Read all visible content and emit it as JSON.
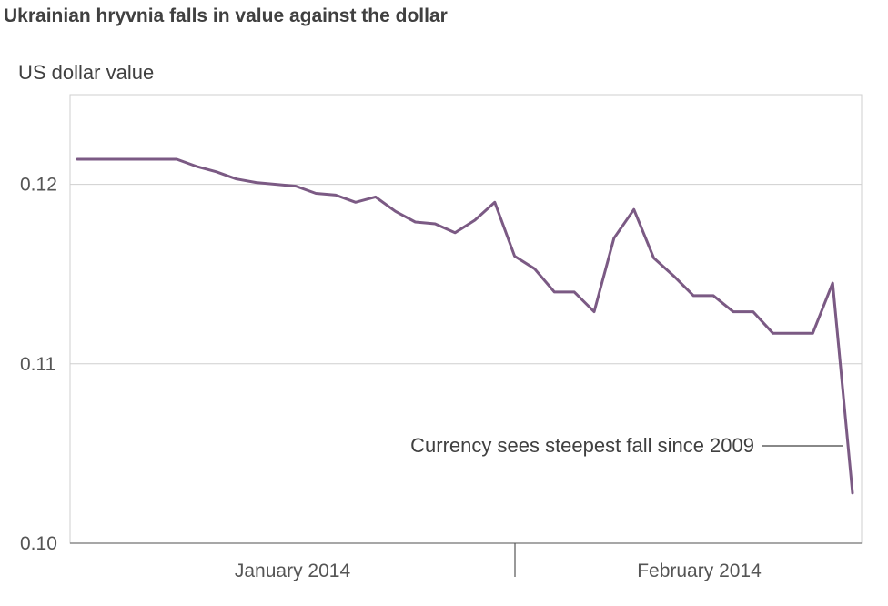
{
  "chart_data": {
    "type": "line",
    "title": "Ukrainian hryvnia falls in value against the dollar",
    "ylabel": "US dollar value",
    "xlabel": "",
    "ylim": [
      0.1,
      0.125
    ],
    "y_ticks": [
      {
        "value": 0.1,
        "label": "0.10"
      },
      {
        "value": 0.11,
        "label": "0.11"
      },
      {
        "value": 0.12,
        "label": "0.12"
      }
    ],
    "x_ticks": [
      {
        "label": "January 2014"
      },
      {
        "label": "February 2014"
      }
    ],
    "grid": true,
    "series": [
      {
        "color": "#7b5a84",
        "values": [
          0.1214,
          0.1214,
          0.1214,
          0.1214,
          0.1214,
          0.1214,
          0.121,
          0.1207,
          0.1203,
          0.1201,
          0.12,
          0.1199,
          0.1195,
          0.1194,
          0.119,
          0.1193,
          0.1185,
          0.1179,
          0.1178,
          0.1173,
          0.118,
          0.119,
          0.116,
          0.1153,
          0.114,
          0.114,
          0.1129,
          0.117,
          0.1186,
          0.1159,
          0.1149,
          0.1138,
          0.1138,
          0.1129,
          0.1129,
          0.1117,
          0.1117,
          0.1117,
          0.1145,
          0.1028
        ]
      }
    ],
    "annotation": {
      "text": "Currency sees steepest fall since 2009"
    }
  }
}
